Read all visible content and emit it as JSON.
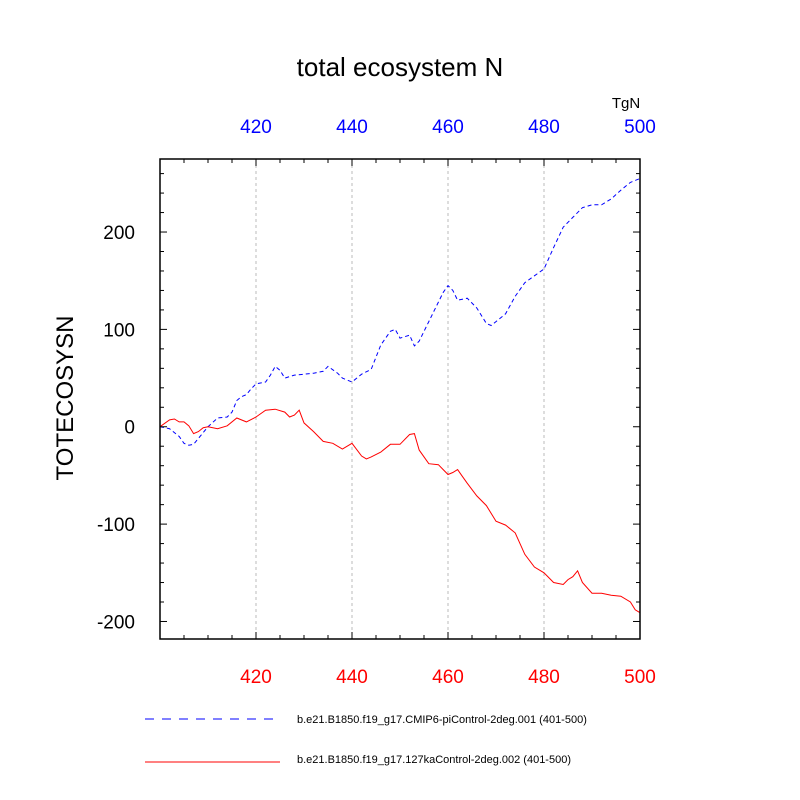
{
  "chart_data": {
    "type": "line",
    "title": "total ecosystem N",
    "ylabel": "TOTECOSYSN",
    "units": "TgN",
    "xlim": [
      400,
      500
    ],
    "ylim": [
      -218,
      275
    ],
    "x_ticks": [
      420,
      440,
      460,
      480,
      500
    ],
    "x_tick_labels": [
      "420",
      "440",
      "460",
      "480",
      "500"
    ],
    "y_ticks": [
      -200,
      -100,
      0,
      100,
      200
    ],
    "y_tick_labels": [
      "-200",
      "-100",
      "0",
      "100",
      "200"
    ],
    "colors": {
      "series1": "#0000ff",
      "series2": "#ff0000"
    },
    "series": [
      {
        "name": "b.e21.B1850.f19_g17.CMIP6-piControl-2deg.001 (401-500)",
        "color": "#0000ff",
        "style": "dashed",
        "x": [
          400,
          402,
          404,
          405,
          406,
          407,
          408,
          409,
          410,
          412,
          414,
          415,
          416,
          417,
          418,
          419,
          420,
          422,
          423,
          424,
          425,
          426,
          428,
          430,
          432,
          434,
          435,
          437,
          438,
          440,
          442,
          444,
          446,
          448,
          449,
          450,
          452,
          453,
          454,
          456,
          458,
          459,
          460,
          461,
          462,
          464,
          466,
          468,
          469,
          470,
          472,
          474,
          476,
          478,
          480,
          482,
          484,
          486,
          488,
          490,
          492,
          494,
          496,
          498,
          500
        ],
        "y": [
          0,
          -2,
          -10,
          -17,
          -19,
          -18,
          -12,
          -6,
          0,
          9,
          10,
          15,
          27,
          31,
          33,
          39,
          44,
          46,
          53,
          62,
          58,
          50,
          53,
          54,
          55,
          57,
          62,
          55,
          50,
          46,
          54,
          59,
          84,
          98,
          100,
          91,
          94,
          83,
          88,
          108,
          128,
          138,
          145,
          140,
          130,
          132,
          122,
          106,
          104,
          108,
          116,
          134,
          148,
          155,
          162,
          184,
          205,
          215,
          225,
          228,
          228,
          234,
          243,
          251,
          255
        ]
      },
      {
        "name": "b.e21.B1850.f19_g17.127kaControl-2deg.002 (401-500)",
        "color": "#ff0000",
        "style": "solid",
        "x": [
          400,
          402,
          403,
          404,
          405,
          406,
          407,
          408,
          409,
          410,
          412,
          414,
          416,
          418,
          420,
          422,
          424,
          426,
          427,
          428,
          429,
          430,
          432,
          434,
          436,
          438,
          440,
          442,
          443,
          444,
          446,
          448,
          450,
          452,
          453,
          454,
          456,
          458,
          459,
          460,
          461,
          462,
          463,
          464,
          466,
          468,
          470,
          472,
          474,
          476,
          478,
          480,
          482,
          484,
          485,
          486,
          487,
          488,
          490,
          492,
          494,
          496,
          498,
          499,
          500
        ],
        "y": [
          0,
          7,
          8,
          5,
          5,
          1,
          -7,
          -5,
          -1,
          0,
          -2,
          1,
          9,
          5,
          10,
          17,
          18,
          15,
          10,
          12,
          17,
          4,
          -5,
          -15,
          -17,
          -23,
          -17,
          -30,
          -33,
          -31,
          -26,
          -18,
          -18,
          -8,
          -7,
          -24,
          -38,
          -39,
          -44,
          -49,
          -47,
          -44,
          -51,
          -58,
          -71,
          -81,
          -97,
          -101,
          -109,
          -131,
          -144,
          -150,
          -160,
          -162,
          -157,
          -154,
          -148,
          -160,
          -171,
          -171,
          -173,
          -174,
          -180,
          -188,
          -191
        ]
      }
    ]
  }
}
